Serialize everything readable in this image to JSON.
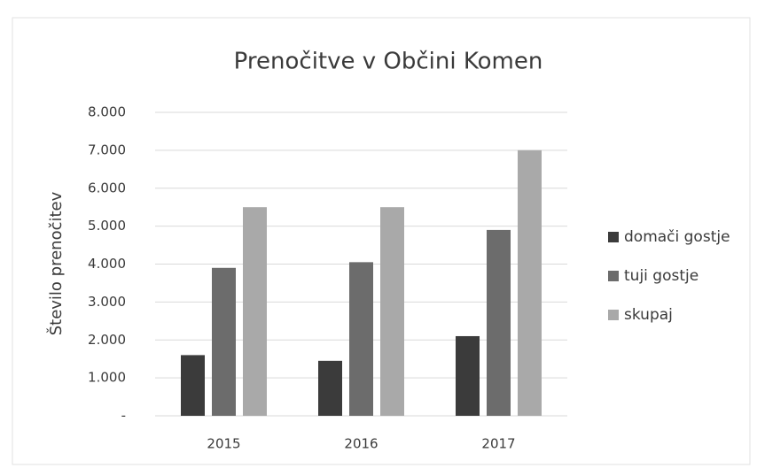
{
  "chart_data": {
    "type": "bar",
    "title": "Prenočitve v Občini Komen",
    "y_label": "Število prenočitev",
    "categories": [
      "2015",
      "2016",
      "2017"
    ],
    "series": [
      {
        "name": "domači gostje",
        "color": "#3b3b3b",
        "values": [
          1600,
          1450,
          2100
        ]
      },
      {
        "name": "tuji gostje",
        "color": "#6c6c6c",
        "values": [
          3900,
          4050,
          4900
        ]
      },
      {
        "name": "skupaj",
        "color": "#a9a9a9",
        "values": [
          5500,
          5500,
          7000
        ]
      }
    ],
    "ylim": [
      0,
      8000
    ],
    "yticks": [
      {
        "value": 0,
        "label": "-"
      },
      {
        "value": 1000,
        "label": "1.000"
      },
      {
        "value": 2000,
        "label": "2.000"
      },
      {
        "value": 3000,
        "label": "3.000"
      },
      {
        "value": 4000,
        "label": "4.000"
      },
      {
        "value": 5000,
        "label": "5.000"
      },
      {
        "value": 6000,
        "label": "6.000"
      },
      {
        "value": 7000,
        "label": "7.000"
      },
      {
        "value": 8000,
        "label": "8.000"
      }
    ],
    "grid": true,
    "legend": "right"
  }
}
